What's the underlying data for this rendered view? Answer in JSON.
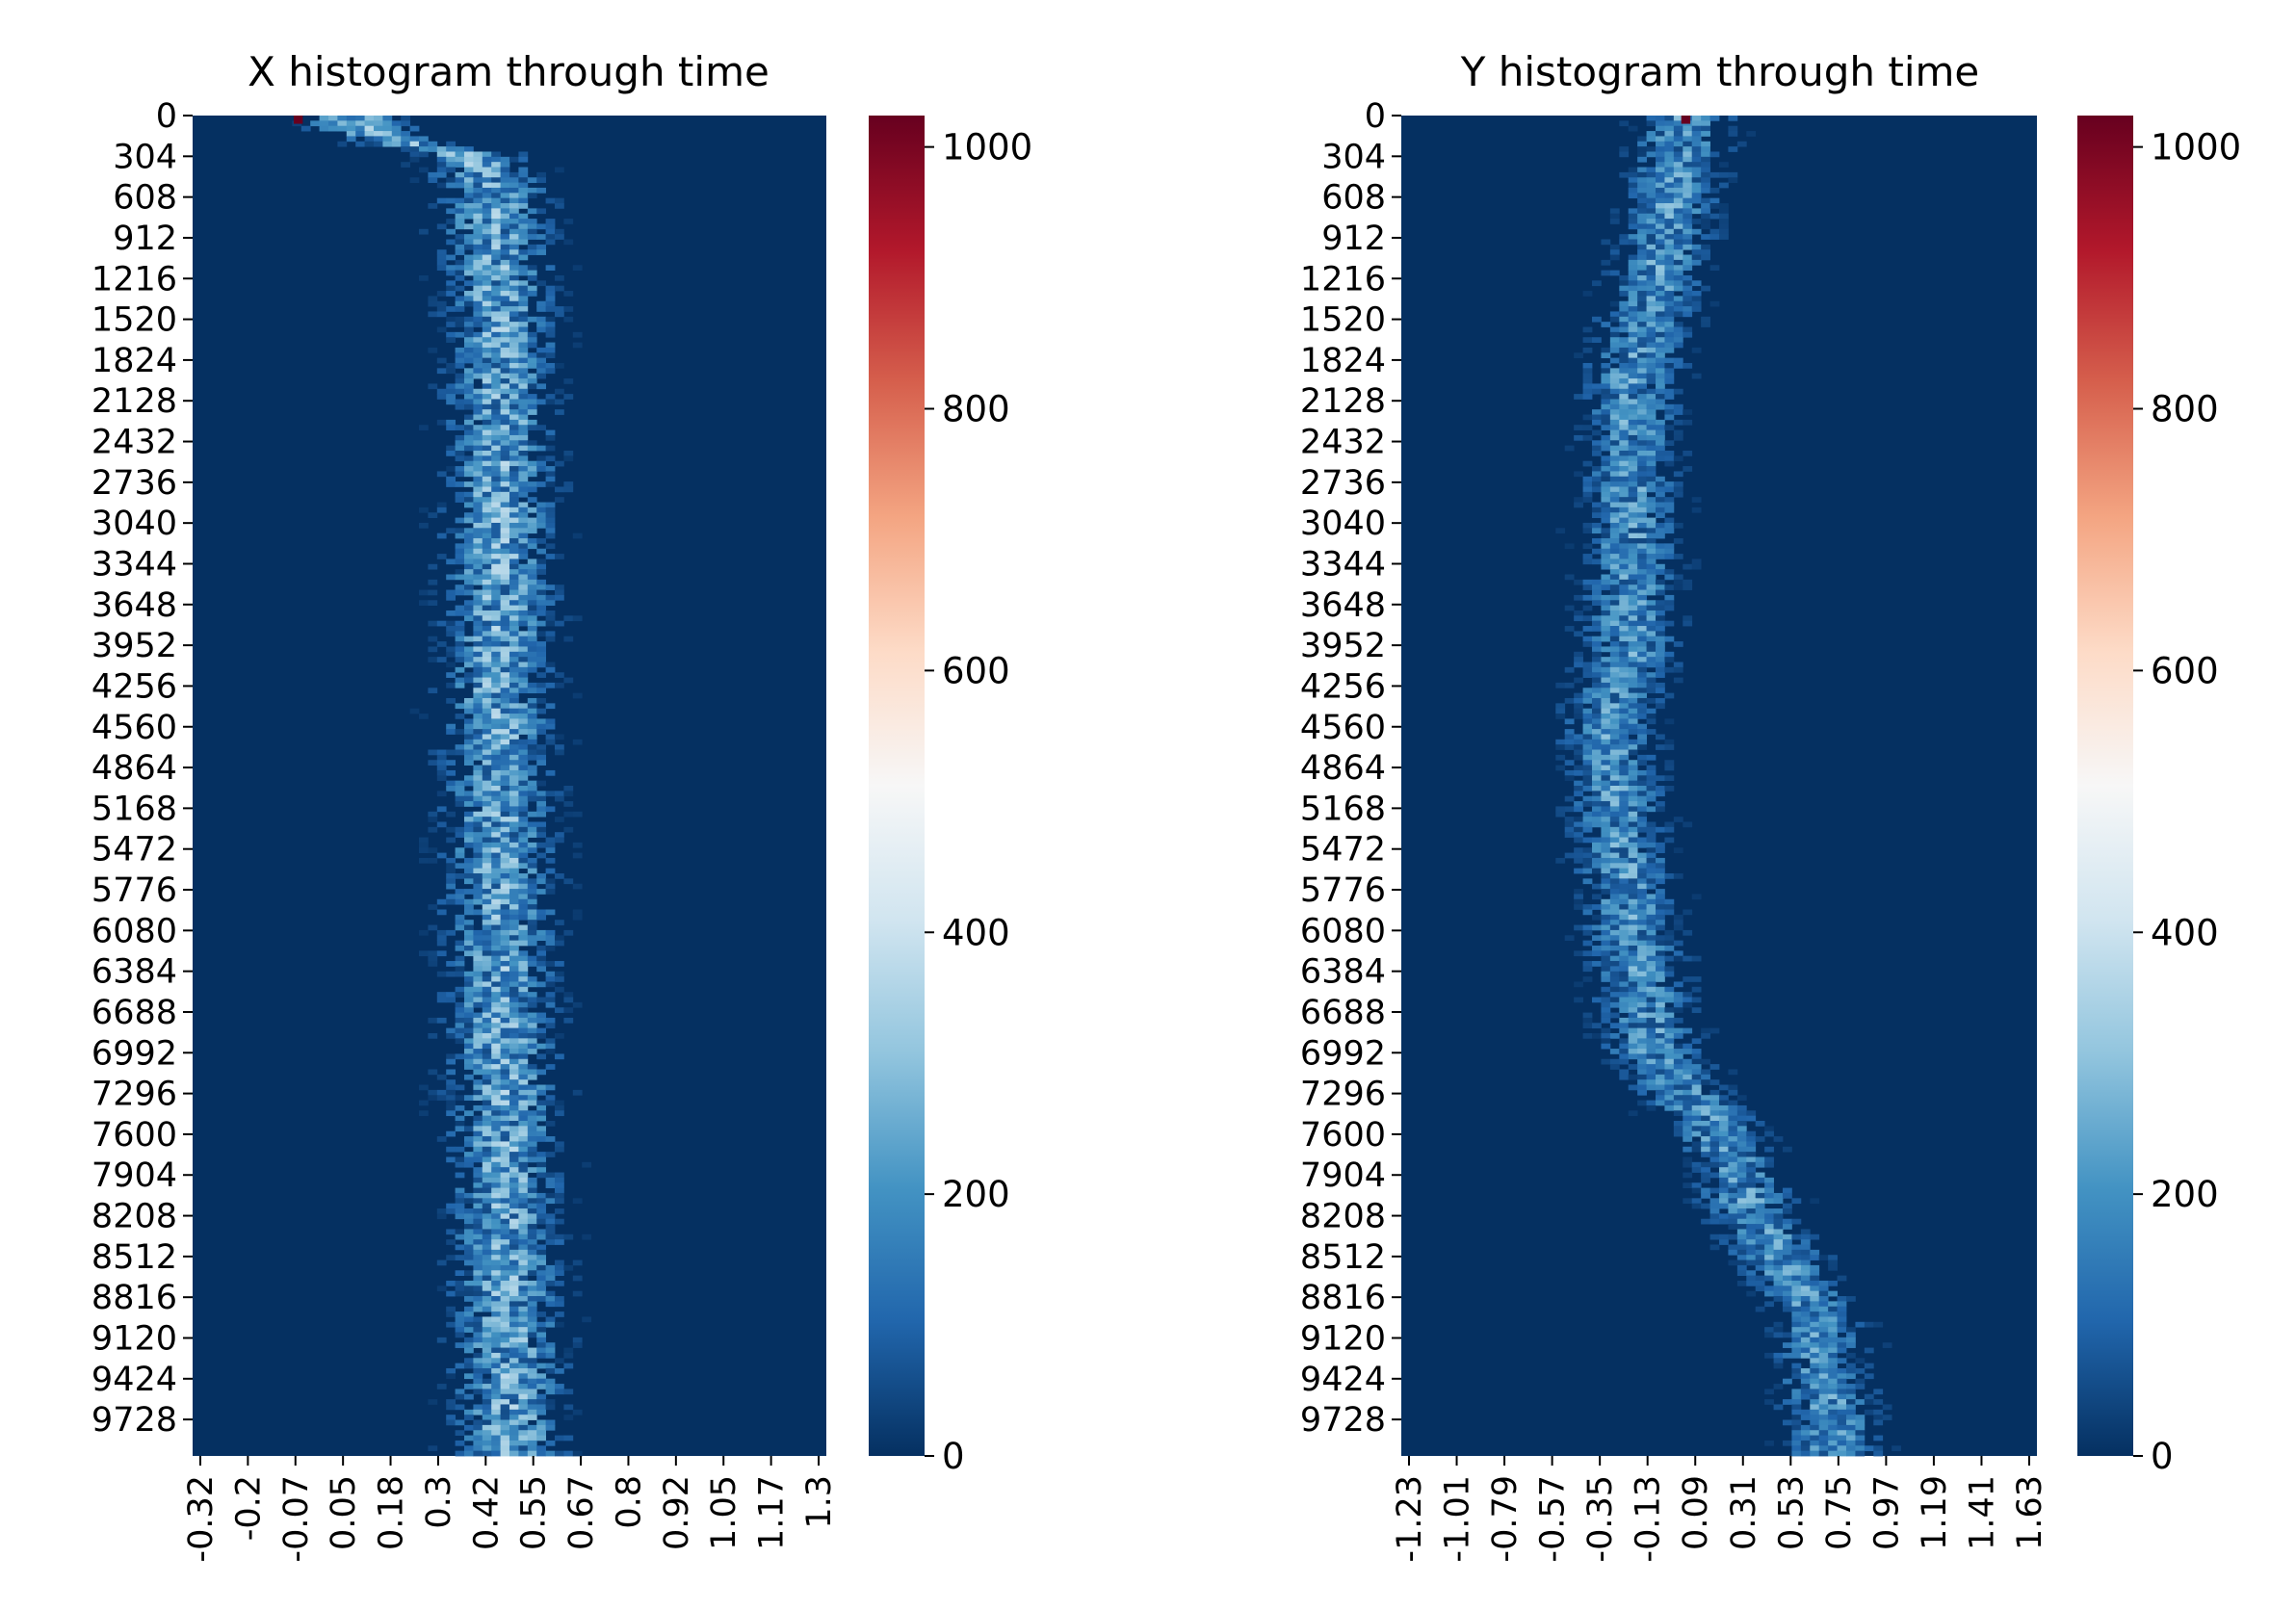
{
  "colormap": "RdBu_r",
  "colors": {
    "cmap_stops": [
      "#053061",
      "#2166ac",
      "#4393c3",
      "#92c5de",
      "#d1e5f0",
      "#f7f7f7",
      "#fddbc7",
      "#f4a582",
      "#d6604d",
      "#b2182b",
      "#67001f"
    ],
    "background": "#ffffff",
    "text": "#000000"
  },
  "chart_data": [
    {
      "type": "heatmap",
      "title": "X histogram through time",
      "xlabel": "",
      "ylabel": "",
      "x_tick_labels": [
        "-0.32",
        "-0.2",
        "-0.07",
        "0.05",
        "0.18",
        "0.3",
        "0.42",
        "0.55",
        "0.67",
        "0.8",
        "0.92",
        "1.05",
        "1.17",
        "1.3"
      ],
      "y_tick_labels": [
        "0",
        "304",
        "608",
        "912",
        "1216",
        "1520",
        "1824",
        "2128",
        "2432",
        "2736",
        "3040",
        "3344",
        "3648",
        "3952",
        "4256",
        "4560",
        "4864",
        "5168",
        "5472",
        "5776",
        "6080",
        "6384",
        "6688",
        "6992",
        "7296",
        "7600",
        "7904",
        "8208",
        "8512",
        "8816",
        "9120",
        "9424",
        "9728"
      ],
      "x_range": [
        -0.32,
        1.3
      ],
      "y_range": [
        0,
        10000
      ],
      "color_range": [
        0,
        1024
      ],
      "colorbar_ticks": [
        "0",
        "200",
        "400",
        "600",
        "800",
        "1000"
      ],
      "colorbar_tick_values": [
        0,
        200,
        400,
        600,
        800,
        1000
      ],
      "peak": {
        "x": -0.05,
        "y": 0,
        "value": 1024
      },
      "cluster_path": [
        [
          0,
          0.09
        ],
        [
          100,
          0.12
        ],
        [
          200,
          0.22
        ],
        [
          300,
          0.4
        ],
        [
          600,
          0.45
        ],
        [
          2000,
          0.47
        ],
        [
          5000,
          0.46
        ],
        [
          8000,
          0.48
        ],
        [
          10000,
          0.49
        ]
      ],
      "spread": 0.09,
      "typical_value": 220
    },
    {
      "type": "heatmap",
      "title": "Y histogram through time",
      "xlabel": "",
      "ylabel": "",
      "x_tick_labels": [
        "-1.23",
        "-1.01",
        "-0.79",
        "-0.57",
        "-0.35",
        "-0.13",
        "0.09",
        "0.31",
        "0.53",
        "0.75",
        "0.97",
        "1.19",
        "1.41",
        "1.63"
      ],
      "y_tick_labels": [
        "0",
        "304",
        "608",
        "912",
        "1216",
        "1520",
        "1824",
        "2128",
        "2432",
        "2736",
        "3040",
        "3344",
        "3648",
        "3952",
        "4256",
        "4560",
        "4864",
        "5168",
        "5472",
        "5776",
        "6080",
        "6384",
        "6688",
        "6992",
        "7296",
        "7600",
        "7904",
        "8208",
        "8512",
        "8816",
        "9120",
        "9424",
        "9728"
      ],
      "x_range": [
        -1.23,
        1.63
      ],
      "y_range": [
        0,
        10000
      ],
      "color_range": [
        0,
        1024
      ],
      "colorbar_ticks": [
        "0",
        "200",
        "400",
        "600",
        "800",
        "1000"
      ],
      "colorbar_tick_values": [
        0,
        200,
        400,
        600,
        800,
        1000
      ],
      "peak": {
        "x": 0.05,
        "y": 0,
        "value": 1024
      },
      "cluster_path": [
        [
          0,
          0.05
        ],
        [
          1000,
          -0.05
        ],
        [
          2000,
          -0.2
        ],
        [
          4000,
          -0.2
        ],
        [
          4600,
          -0.3
        ],
        [
          6000,
          -0.2
        ],
        [
          7000,
          -0.1
        ],
        [
          7600,
          0.2
        ],
        [
          8200,
          0.35
        ],
        [
          9000,
          0.65
        ],
        [
          10000,
          0.72
        ]
      ],
      "spread": 0.14,
      "typical_value": 180
    }
  ]
}
